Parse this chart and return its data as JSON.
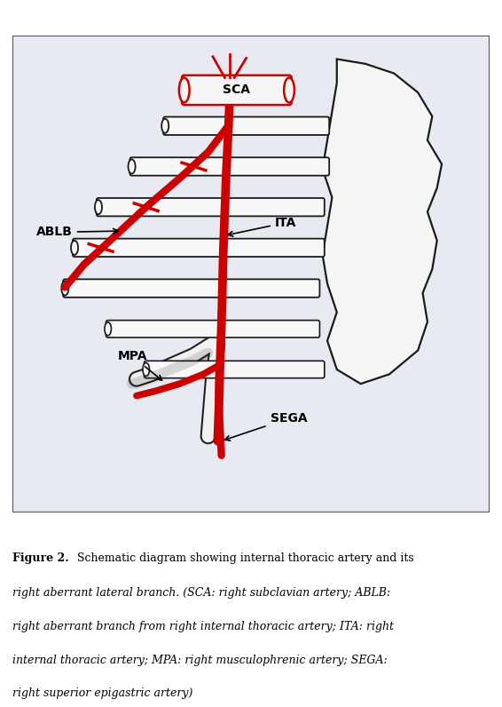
{
  "bg_color": "#e8eaf2",
  "border_color": "#444444",
  "red_color": "#cc0000",
  "outline_color": "#1a1a1a",
  "rib_fill": "#f8f8f8",
  "body_fill": "#f5f5f5",
  "fig_width": 5.66,
  "fig_height": 7.96,
  "caption_bold": "Figure 2.",
  "caption_normal": "  Schematic diagram showing internal thoracic artery and its",
  "caption_italic": "right aberrant lateral branch. (",
  "caption_full": "right aberrant lateral branch. (SCA: right subclavian artery; ABLB:\nright aberrant branch from right internal thoracic artery; ITA: right\ninternal thoracic artery; MPA: right musculophrenic artery; SEGA:\nright superior epigastric artery)"
}
